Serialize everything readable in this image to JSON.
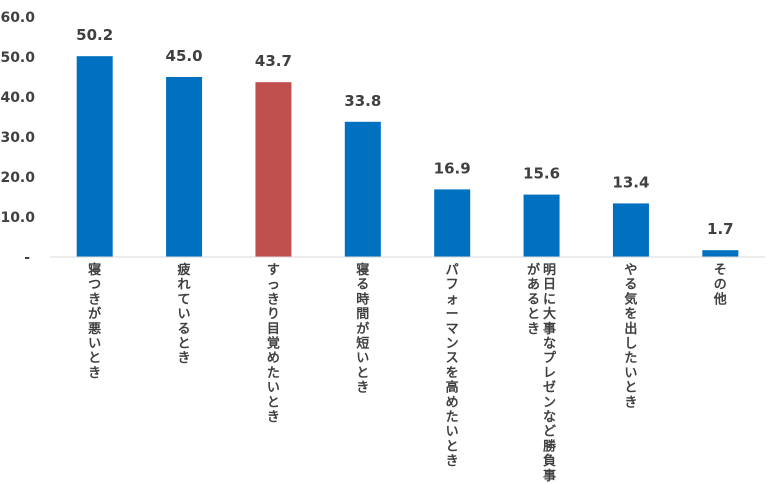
{
  "chart_data": {
    "type": "bar",
    "categories": [
      "寝つきが悪いとき",
      "疲れているとき",
      "すっきり目覚めたいとき",
      "寝る時間が短いとき",
      "パフォーマンスを高めたいとき",
      "明日に大事なプレゼンなど勝負事があるとき",
      "やる気を出したいとき",
      "その他"
    ],
    "category_lines": [
      [
        "寝つきが悪いとき"
      ],
      [
        "疲れているとき"
      ],
      [
        "すっきり目覚めたいとき"
      ],
      [
        "寝る時間が短いとき"
      ],
      [
        "パフォーマンスを高めたいとき"
      ],
      [
        "明日に大事なプレゼンなど勝負事",
        "があるとき"
      ],
      [
        "やる気を出したいとき"
      ],
      [
        "その他"
      ]
    ],
    "values": [
      50.2,
      45.0,
      43.7,
      33.8,
      16.9,
      15.6,
      13.4,
      1.7
    ],
    "value_labels": [
      "50.2",
      "45.0",
      "43.7",
      "33.8",
      "16.9",
      "15.6",
      "13.4",
      "1.7"
    ],
    "y_ticks": [
      0,
      10,
      20,
      30,
      40,
      50,
      60
    ],
    "y_tick_labels": [
      "-",
      "10.0",
      "20.0",
      "30.0",
      "40.0",
      "50.0",
      "60.0"
    ],
    "ylim": [
      0,
      60
    ],
    "grid": false,
    "legend": "none",
    "bar_color": "#0070C0",
    "highlight_color": "#C0504D",
    "highlight_index": 2,
    "title": "",
    "xlabel": "",
    "ylabel": ""
  }
}
